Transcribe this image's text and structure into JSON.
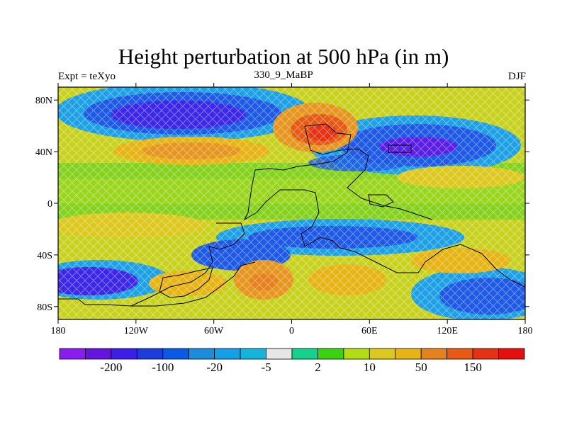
{
  "title": "Height perturbation at 500 hPa (in m)",
  "subtitle_left": "Expt = teXyo",
  "subtitle_center": "330_9_MaBP",
  "subtitle_right": "DJF",
  "map": {
    "x_ticks": [
      "180",
      "120W",
      "60W",
      "0",
      "60E",
      "120E",
      "180"
    ],
    "y_ticks": [
      "80N",
      "40N",
      "0",
      "40S",
      "80S"
    ]
  },
  "colorbar": {
    "colors": [
      "#8a1cf0",
      "#6414dc",
      "#3c1ee6",
      "#1e3cdc",
      "#0a5ae6",
      "#1e8cdc",
      "#14a0e6",
      "#14b4dc",
      "#e6e6e6",
      "#14d28c",
      "#3cd214",
      "#b4dc14",
      "#dcc81e",
      "#e6b414",
      "#e6821e",
      "#e65a14",
      "#e63214",
      "#e60f0f"
    ],
    "labels": [
      "-200",
      "-100",
      "-20",
      "-5",
      "2",
      "10",
      "50",
      "150"
    ]
  }
}
